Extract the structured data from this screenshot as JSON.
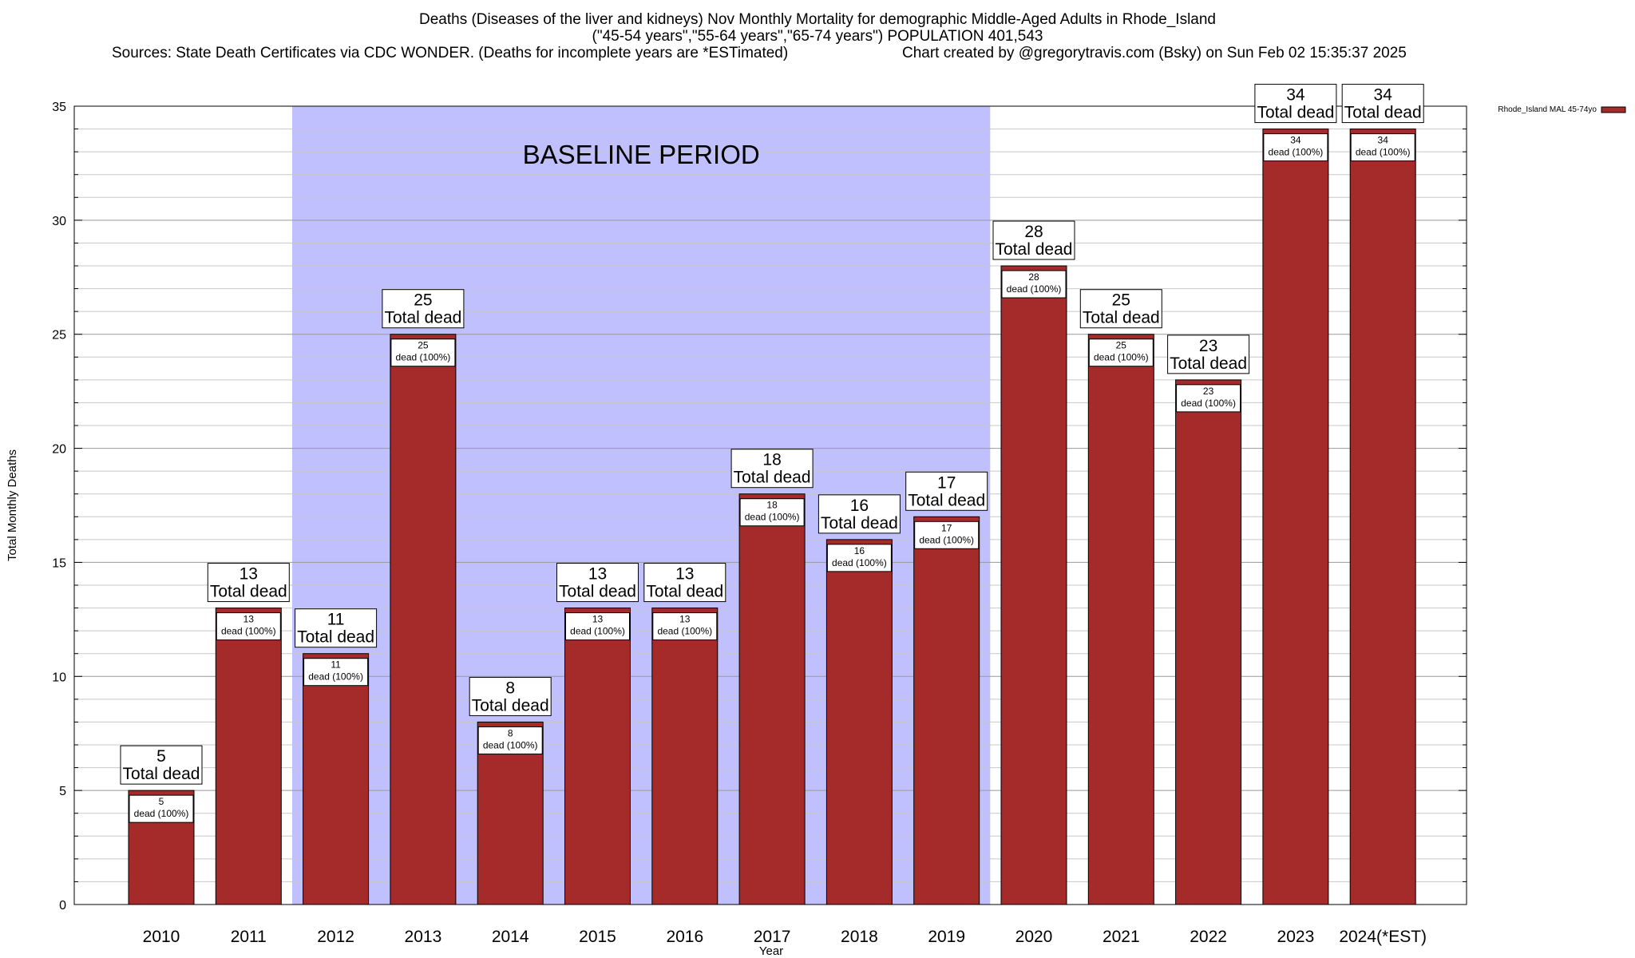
{
  "chart_data": {
    "type": "bar",
    "title": "Deaths (Diseases of the liver and kidneys) Nov Monthly Mortality for demographic Middle-Aged Adults in Rhode_Island",
    "subtitle": "(\"45-54 years\",\"55-64 years\",\"65-74 years\") POPULATION 401,543",
    "source": "Sources: State Death Certificates via CDC WONDER. (Deaths for incomplete years are *ESTimated)",
    "credit": "Chart created by @gregorytravis.com (Bsky) on Sun Feb 02 15:35:37 2025",
    "xlabel": "Year",
    "ylabel": "Total Monthly Deaths",
    "ylim": [
      0,
      35
    ],
    "yticks": [
      0,
      5,
      10,
      15,
      20,
      25,
      30,
      35
    ],
    "grid": true,
    "legend_position": "top-right",
    "categories": [
      "2010",
      "2011",
      "2012",
      "2013",
      "2014",
      "2015",
      "2016",
      "2017",
      "2018",
      "2019",
      "2020",
      "2021",
      "2022",
      "2023",
      "2024(*EST)"
    ],
    "series": [
      {
        "name": "Rhode_Island MAL 45-74yo",
        "color": "#a52a2a",
        "values": [
          5,
          13,
          11,
          25,
          8,
          13,
          13,
          18,
          16,
          17,
          28,
          25,
          23,
          34,
          34
        ]
      }
    ],
    "total_label": "Total dead",
    "segment_label": "dead (100%)",
    "annotation": {
      "text": "BASELINE PERIOD",
      "start_category": "2012",
      "end_category": "2019",
      "color": "#c0c0ff"
    }
  }
}
